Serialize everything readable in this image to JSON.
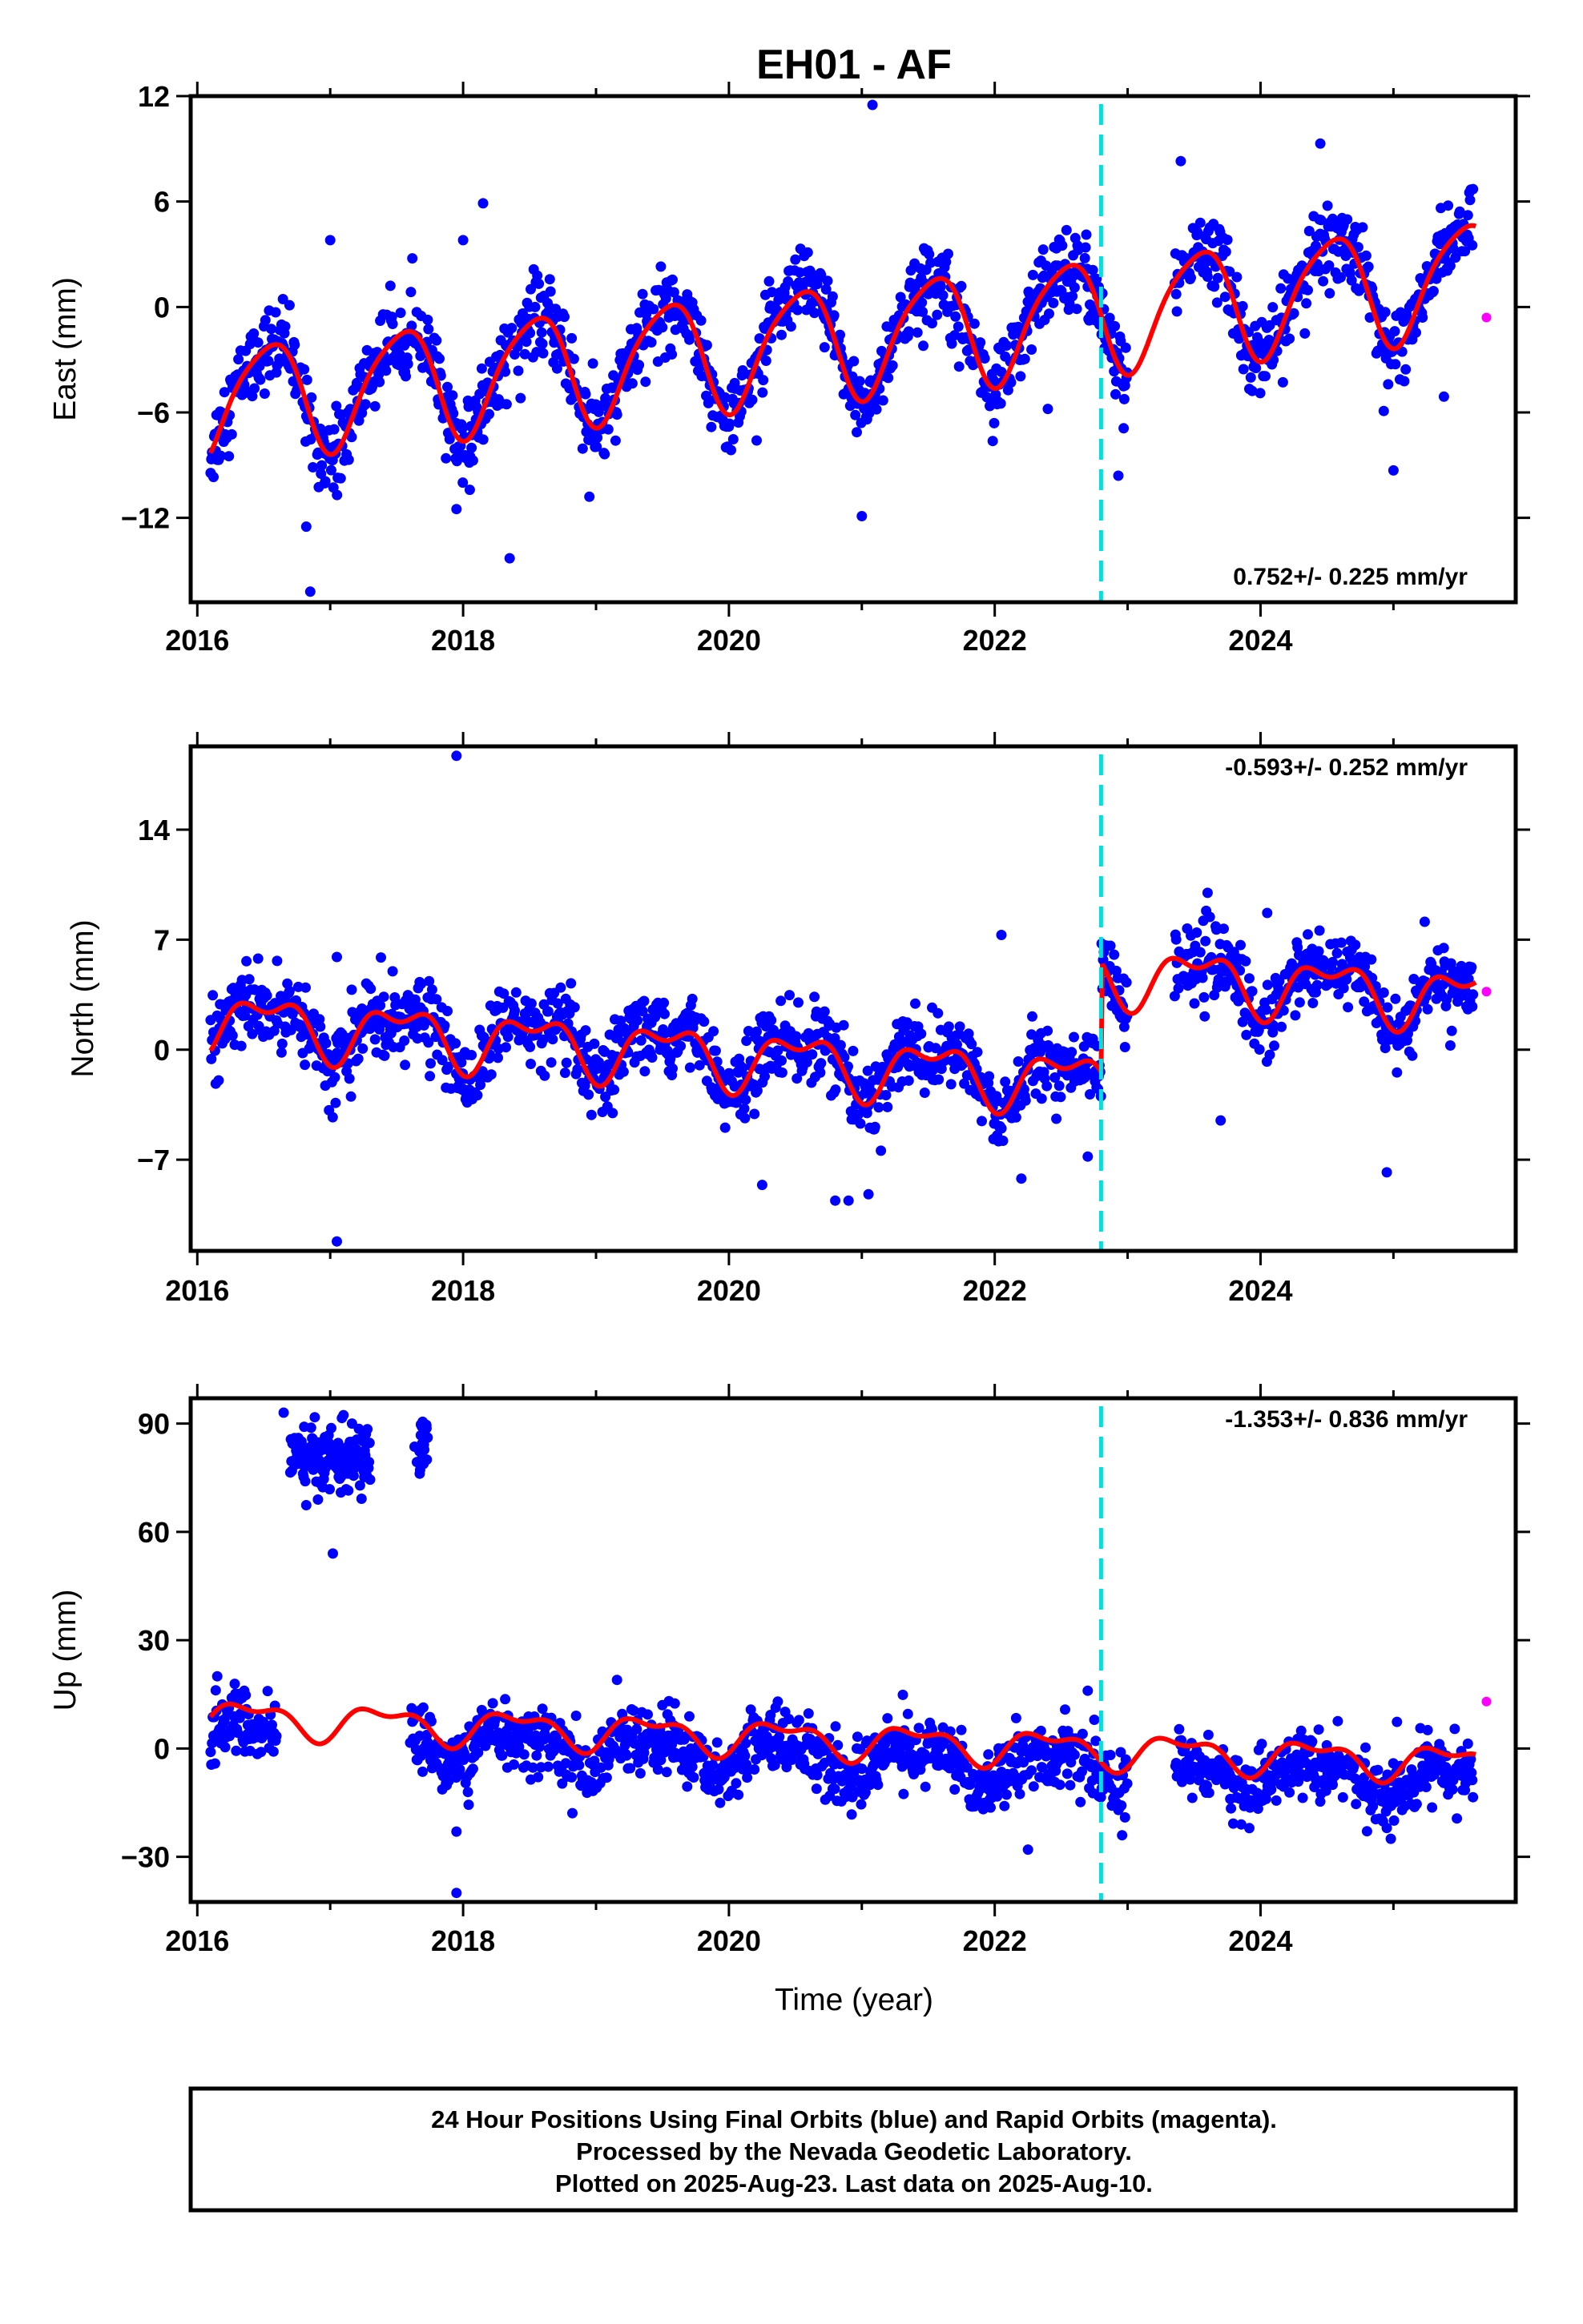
{
  "title": "EH01 - AF",
  "xlabel": "Time (year)",
  "x_ticks": [
    2016,
    2018,
    2020,
    2022,
    2024
  ],
  "footer_lines": [
    "24 Hour Positions Using Final Orbits (blue) and Rapid Orbits (magenta).",
    "Processed by the Nevada Geodetic Laboratory.",
    "Plotted on 2025-Aug-23. Last data on 2025-Aug-10."
  ],
  "colors": {
    "final": "#0000ff",
    "rapid": "#ff00ff",
    "model": "#ff0000",
    "event": "#00e0e0"
  },
  "chart_data": [
    {
      "type": "scatter",
      "component": "east",
      "ylabel": "East (mm)",
      "rate_label": "0.752+/- 0.225 mm/yr",
      "xlim": [
        2015.95,
        2025.92
      ],
      "ylim": [
        -16.8,
        12
      ],
      "y_ticks": [
        12,
        6,
        0,
        -6,
        -12
      ],
      "y_tick_labels": [
        "12",
        "6",
        "0",
        "−6",
        "−12"
      ],
      "event_line_x": 2022.8,
      "model": {
        "offset": -2.1,
        "trend": 0.752,
        "ref_year": 2020.5,
        "annual_amp": 3.2,
        "annual_phase": 2016.28,
        "semiannual_amp": 0.55,
        "semiannual_phase": 2016.1,
        "jumps": []
      },
      "scatter": {
        "sd": 1.1,
        "gap": [
          2023.0,
          2023.35
        ]
      },
      "outliers": [
        [
          2016.85,
          -16.2
        ],
        [
          2016.82,
          -12.5
        ],
        [
          2017.95,
          -11.5
        ],
        [
          2018.05,
          -10.4
        ],
        [
          2018.35,
          -14.3
        ],
        [
          2018.95,
          -10.8
        ],
        [
          2021.0,
          -11.9
        ],
        [
          2021.08,
          11.5
        ],
        [
          2022.4,
          -5.8
        ],
        [
          2022.97,
          -6.9
        ],
        [
          2022.93,
          -9.6
        ],
        [
          2025.0,
          -9.3
        ],
        [
          2025.38,
          -5.1
        ],
        [
          2017.0,
          3.8
        ],
        [
          2018.0,
          3.8
        ],
        [
          2018.15,
          5.9
        ],
        [
          2023.4,
          8.3
        ],
        [
          2024.45,
          9.3
        ]
      ],
      "rapid": [
        [
          2025.7,
          -0.6
        ]
      ]
    },
    {
      "type": "scatter",
      "component": "north",
      "ylabel": "North (mm)",
      "rate_label": "-0.593+/- 0.252 mm/yr",
      "xlim": [
        2015.95,
        2025.92
      ],
      "ylim": [
        -12.8,
        19.3
      ],
      "y_ticks": [
        14,
        7,
        0,
        -7
      ],
      "y_tick_labels": [
        "14",
        "7",
        "0",
        "−7"
      ],
      "event_line_x": 2022.8,
      "model": {
        "offset": -0.7,
        "trend": -0.593,
        "ref_year": 2020.5,
        "annual_amp": 1.6,
        "annual_phase": 2016.28,
        "semiannual_amp": 0.9,
        "semiannual_phase": 2016.15,
        "jumps": [
          [
            2022.8,
            7.0
          ]
        ]
      },
      "scatter": {
        "sd": 1.2,
        "gap": [
          2023.0,
          2023.35
        ]
      },
      "outliers": [
        [
          2017.95,
          18.7
        ],
        [
          2017.05,
          -12.2
        ],
        [
          2020.25,
          -8.6
        ],
        [
          2020.8,
          -9.6
        ],
        [
          2020.9,
          -9.6
        ],
        [
          2021.05,
          -9.2
        ],
        [
          2022.2,
          -8.2
        ],
        [
          2022.7,
          -6.8
        ],
        [
          2022.05,
          7.3
        ],
        [
          2023.7,
          -4.5
        ],
        [
          2024.05,
          8.7
        ],
        [
          2024.95,
          -7.8
        ],
        [
          2017.05,
          5.9
        ]
      ],
      "rapid": [
        [
          2025.7,
          3.7
        ]
      ]
    },
    {
      "type": "scatter",
      "component": "up",
      "ylabel": "Up (mm)",
      "rate_label": "-1.353+/- 0.836 mm/yr",
      "xlim": [
        2015.95,
        2025.92
      ],
      "ylim": [
        -42.5,
        97
      ],
      "y_ticks": [
        90,
        60,
        30,
        0,
        -30
      ],
      "y_tick_labels": [
        "90",
        "60",
        "30",
        "0",
        "−30"
      ],
      "event_line_x": 2022.8,
      "model": {
        "offset": 2.8,
        "trend": -1.353,
        "ref_year": 2020.5,
        "annual_amp": 4.2,
        "annual_phase": 2016.15,
        "semiannual_amp": 2.2,
        "semiannual_phase": 2016.05,
        "jumps": []
      },
      "scatter": {
        "sd": 4.5,
        "gap": [
          2016.6,
          2017.6
        ],
        "gap2": [
          2023.0,
          2023.35
        ]
      },
      "cluster": {
        "x_range": [
          2016.7,
          2017.3
        ],
        "y_center": 80,
        "sd": 4.5,
        "extra": [
          [
            2017.7,
            85
          ],
          [
            2017.68,
            80
          ],
          [
            2017.72,
            88
          ]
        ]
      },
      "outliers": [
        [
          2016.65,
          93
        ],
        [
          2017.02,
          54
        ],
        [
          2017.95,
          -23
        ],
        [
          2017.95,
          -40
        ],
        [
          2022.25,
          -28
        ],
        [
          2024.95,
          -22
        ],
        [
          2024.98,
          -25
        ],
        [
          2016.15,
          20
        ],
        [
          2022.7,
          16
        ]
      ],
      "rapid": [
        [
          2025.7,
          13
        ]
      ]
    }
  ]
}
